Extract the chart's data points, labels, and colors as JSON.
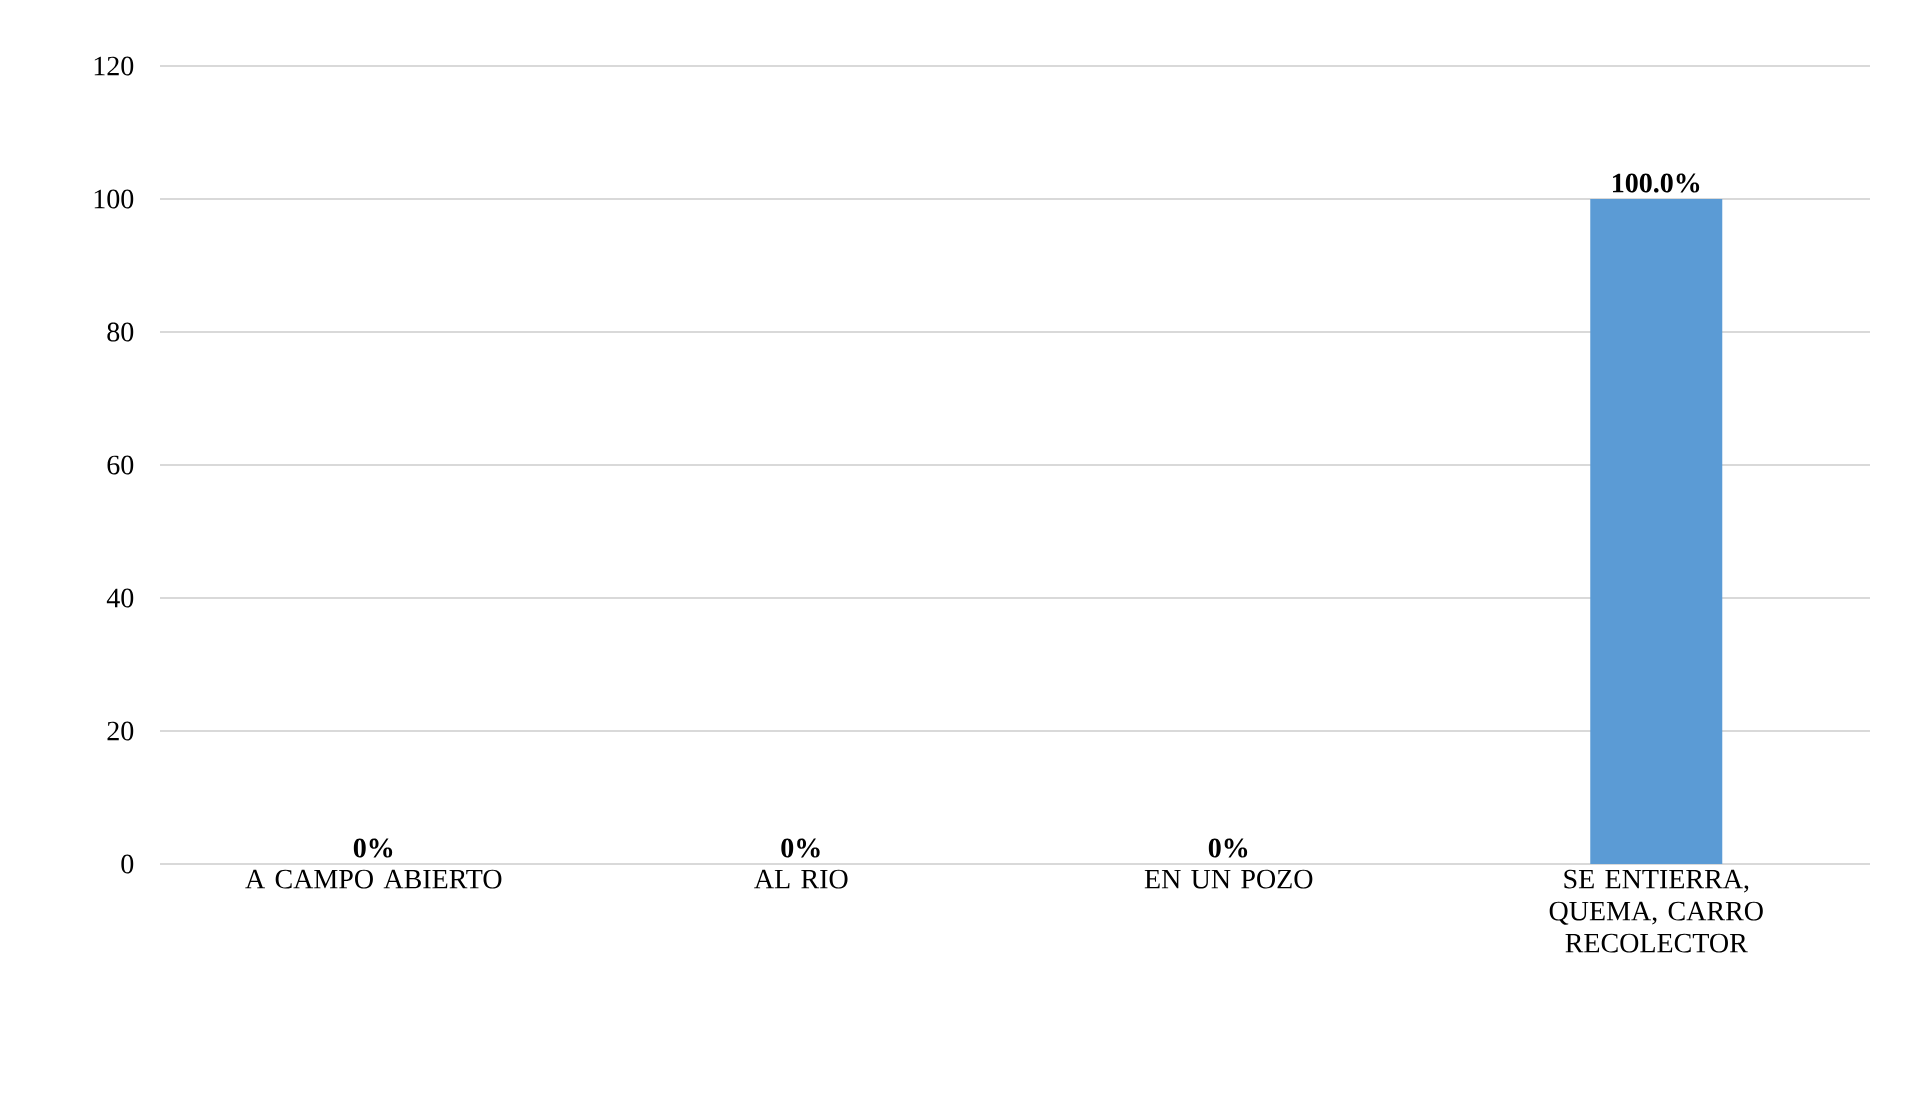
{
  "chart_data": {
    "type": "bar",
    "categories": [
      "A CAMPO ABIERTO",
      "AL RIO",
      "EN UN POZO",
      "SE ENTIERRA, QUEMA, CARRO RECOLECTOR"
    ],
    "values": [
      0,
      0,
      0,
      100
    ],
    "value_labels": [
      "0%",
      "0%",
      "0%",
      "100.0%"
    ],
    "color": "#5b9bd5",
    "ylim": [
      0,
      120
    ],
    "yticks": [
      0,
      20,
      40,
      60,
      80,
      100,
      120
    ],
    "grid": "y"
  }
}
